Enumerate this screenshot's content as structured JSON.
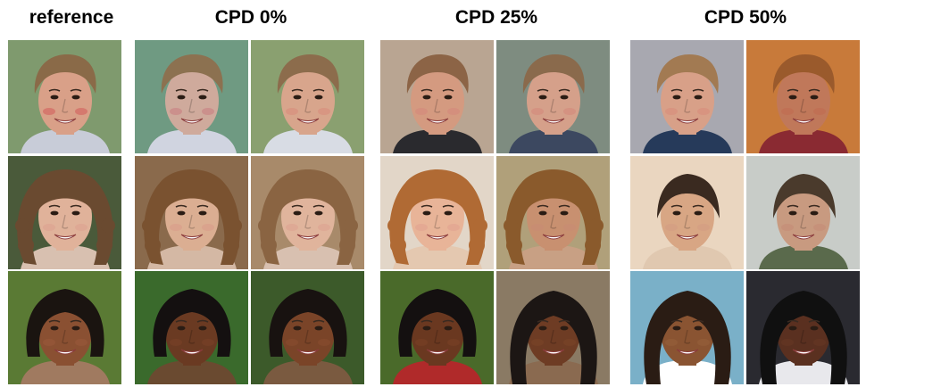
{
  "columns": [
    {
      "title": "reference"
    },
    {
      "title": "CPD 0%"
    },
    {
      "title": "CPD 25%"
    },
    {
      "title": "CPD 50%"
    }
  ],
  "rows": [
    {
      "subject": "young man with short light-brown hair, smiling",
      "cells": [
        {
          "bg": "#7f9a6e",
          "skin": "#d9a088",
          "hair": "#8a6a48",
          "hair_style": "short",
          "cheek": "#d25a5a",
          "shirt": "#c8ccd8"
        },
        {
          "bg": "#6f9a82",
          "skin": "#cfaa9c",
          "hair": "#8c7150",
          "hair_style": "short",
          "cheek": "#c97a80",
          "shirt": "#d0d4e0"
        },
        {
          "bg": "#8aa070",
          "skin": "#d8a58c",
          "hair": "#8c6c4c",
          "hair_style": "short",
          "cheek": "#d88a7a",
          "shirt": "#d8dce4"
        },
        {
          "bg": "#b9a592",
          "skin": "#d49a80",
          "hair": "#8c6446",
          "hair_style": "short",
          "cheek": "#d4867a",
          "shirt": "#2a2a2e"
        },
        {
          "bg": "#7e8c80",
          "skin": "#d5a08a",
          "hair": "#8a6a4c",
          "hair_style": "short",
          "cheek": "#d4867a",
          "shirt": "#3c4860"
        },
        {
          "bg": "#a8a8b0",
          "skin": "#d8a088",
          "hair": "#a27a52",
          "hair_style": "short",
          "cheek": "#d88a7a",
          "shirt": "#263a5a"
        },
        {
          "bg": "#c87a3a",
          "skin": "#c0785a",
          "hair": "#9a5a2c",
          "hair_style": "short",
          "cheek": "#c06a50",
          "shirt": "#8a2a32"
        }
      ]
    },
    {
      "subject": "young woman with curly brown hair",
      "cells": [
        {
          "bg": "#4a5a3a",
          "skin": "#e0b29a",
          "hair": "#6a4a30",
          "hair_style": "curly",
          "cheek": "#dda090",
          "shirt": "#d8c0b0"
        },
        {
          "bg": "#8a6a4c",
          "skin": "#dbae92",
          "hair": "#7a5230",
          "hair_style": "curly",
          "cheek": "#d89a88",
          "shirt": "#d4b8a4"
        },
        {
          "bg": "#a88a6a",
          "skin": "#e0b49c",
          "hair": "#8a6442",
          "hair_style": "curly",
          "cheek": "#dca090",
          "shirt": "#d8c0b0"
        },
        {
          "bg": "#e2d6c8",
          "skin": "#e8b498",
          "hair": "#b06a34",
          "hair_style": "curly",
          "cheek": "#e0a090",
          "shirt": "#e4c8b0"
        },
        {
          "bg": "#b0a07a",
          "skin": "#c89070",
          "hair": "#8a5a2c",
          "hair_style": "curly",
          "cheek": "#c88a74",
          "shirt": "#c8a084"
        },
        {
          "bg": "#ead6c0",
          "skin": "#d8a684",
          "hair": "#3a2a20",
          "hair_style": "sleek",
          "cheek": "#d49a84",
          "shirt": "#e0c8b0"
        },
        {
          "bg": "#c8ccc8",
          "skin": "#c89a80",
          "hair": "#4a3a2c",
          "hair_style": "sleek",
          "cheek": "#c48a74",
          "shirt": "#5a6a4c"
        }
      ]
    },
    {
      "subject": "young woman with black bob hair, smiling",
      "cells": [
        {
          "bg": "#5a7a34",
          "skin": "#8a5032",
          "hair": "#1a1410",
          "hair_style": "bob",
          "cheek": "#9a5a3c",
          "shirt": "#a07a60"
        },
        {
          "bg": "#3a6a2c",
          "skin": "#6a3a22",
          "hair": "#141010",
          "hair_style": "bob",
          "cheek": "#7a4228",
          "shirt": "#6a4a30"
        },
        {
          "bg": "#3c5a2a",
          "skin": "#7a4428",
          "hair": "#181210",
          "hair_style": "bob",
          "cheek": "#8a4e30",
          "shirt": "#7a5a40"
        },
        {
          "bg": "#4a6a2a",
          "skin": "#6a3820",
          "hair": "#141010",
          "hair_style": "bob",
          "cheek": "#7a4226",
          "shirt": "#b02a2a"
        },
        {
          "bg": "#8a7a64",
          "skin": "#6e3c24",
          "hair": "#1c1614",
          "hair_style": "long",
          "cheek": "#7c4628",
          "shirt": "#8a6a50"
        },
        {
          "bg": "#7ab0c8",
          "skin": "#8a5432",
          "hair": "#2a1c14",
          "hair_style": "long",
          "cheek": "#98603c",
          "shirt": "#ffffff"
        },
        {
          "bg": "#2a2a30",
          "skin": "#5a3020",
          "hair": "#101010",
          "hair_style": "long",
          "cheek": "#683824",
          "shirt": "#e8e8ec"
        }
      ]
    }
  ]
}
